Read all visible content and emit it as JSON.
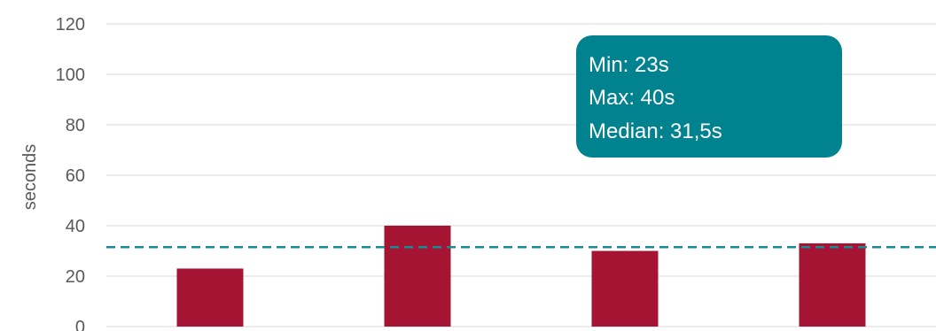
{
  "chart_data": {
    "type": "bar",
    "categories": [
      "",
      "",
      "",
      ""
    ],
    "values": [
      23,
      40,
      30,
      33
    ],
    "ylabel": "seconds",
    "ylim": [
      0,
      120
    ],
    "yticks": [
      0,
      20,
      40,
      60,
      80,
      100,
      120
    ],
    "grid": true,
    "reference_line": {
      "value": 31.5,
      "style": "dashed"
    },
    "annotation": {
      "lines": [
        "Min: 23s",
        "Max: 40s",
        "Median: 31,5s"
      ]
    }
  },
  "colors": {
    "bar": "#a51432",
    "reference_line": "#1b8a96",
    "annotation_bg": "#00838f",
    "grid": "#d9d9d9",
    "text": "#595959"
  }
}
